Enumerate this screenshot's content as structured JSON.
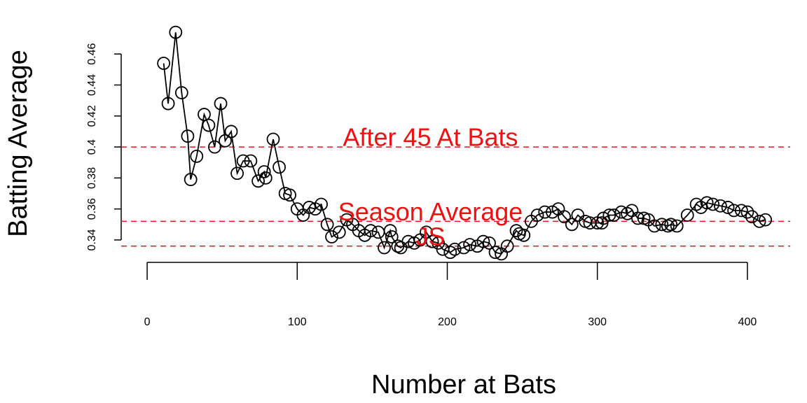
{
  "chart_data": {
    "type": "line",
    "xlabel": "Number at Bats",
    "ylabel": "Batting Average",
    "x": [
      11,
      14,
      19,
      23,
      27,
      29,
      33,
      38,
      41,
      45,
      49,
      52,
      56,
      60,
      64,
      69,
      74,
      78,
      79,
      84,
      88,
      92,
      95,
      100,
      104,
      108,
      112,
      116,
      120,
      123,
      128,
      133,
      137,
      141,
      145,
      149,
      154,
      158,
      162,
      163,
      167,
      169,
      174,
      178,
      182,
      186,
      190,
      194,
      197,
      202,
      205,
      211,
      215,
      220,
      224,
      228,
      232,
      236,
      240,
      246,
      248,
      251,
      256,
      260,
      265,
      270,
      274,
      278,
      283,
      287,
      292,
      295,
      300,
      303,
      304,
      308,
      311,
      316,
      320,
      323,
      327,
      331,
      334,
      338,
      343,
      347,
      349,
      353,
      360,
      366,
      369,
      373,
      377,
      382,
      387,
      391,
      396,
      400,
      403,
      408,
      412
    ],
    "y": [
      0.454,
      0.428,
      0.474,
      0.435,
      0.407,
      0.379,
      0.394,
      0.421,
      0.414,
      0.4,
      0.428,
      0.404,
      0.41,
      0.383,
      0.391,
      0.391,
      0.378,
      0.384,
      0.38,
      0.405,
      0.387,
      0.37,
      0.369,
      0.36,
      0.356,
      0.361,
      0.36,
      0.363,
      0.35,
      0.342,
      0.345,
      0.353,
      0.35,
      0.346,
      0.343,
      0.346,
      0.345,
      0.335,
      0.346,
      0.342,
      0.336,
      0.335,
      0.339,
      0.338,
      0.34,
      0.345,
      0.339,
      0.338,
      0.334,
      0.332,
      0.334,
      0.335,
      0.337,
      0.336,
      0.339,
      0.338,
      0.332,
      0.331,
      0.336,
      0.346,
      0.344,
      0.343,
      0.352,
      0.356,
      0.358,
      0.358,
      0.36,
      0.355,
      0.35,
      0.356,
      0.352,
      0.351,
      0.351,
      0.351,
      0.354,
      0.356,
      0.356,
      0.358,
      0.357,
      0.359,
      0.354,
      0.354,
      0.353,
      0.349,
      0.35,
      0.349,
      0.35,
      0.349,
      0.356,
      0.363,
      0.361,
      0.364,
      0.363,
      0.362,
      0.361,
      0.359,
      0.359,
      0.358,
      0.355,
      0.352,
      0.353
    ],
    "color": "#000000",
    "xlim": [
      -17.3,
      428.5
    ],
    "ylim": [
      0.3314,
      0.4804
    ],
    "xticks": [
      0,
      100,
      200,
      300,
      400
    ],
    "yticks": [
      0.34,
      0.36,
      0.38,
      0.4,
      0.42,
      0.44,
      0.46
    ],
    "annotations": [
      {
        "text": "After 45 At Bats",
        "y": 0.4
      },
      {
        "text": "Season Average",
        "y": 0.352
      },
      {
        "text": "JS",
        "y": 0.336
      }
    ],
    "annotation_color": "#e8141c"
  }
}
